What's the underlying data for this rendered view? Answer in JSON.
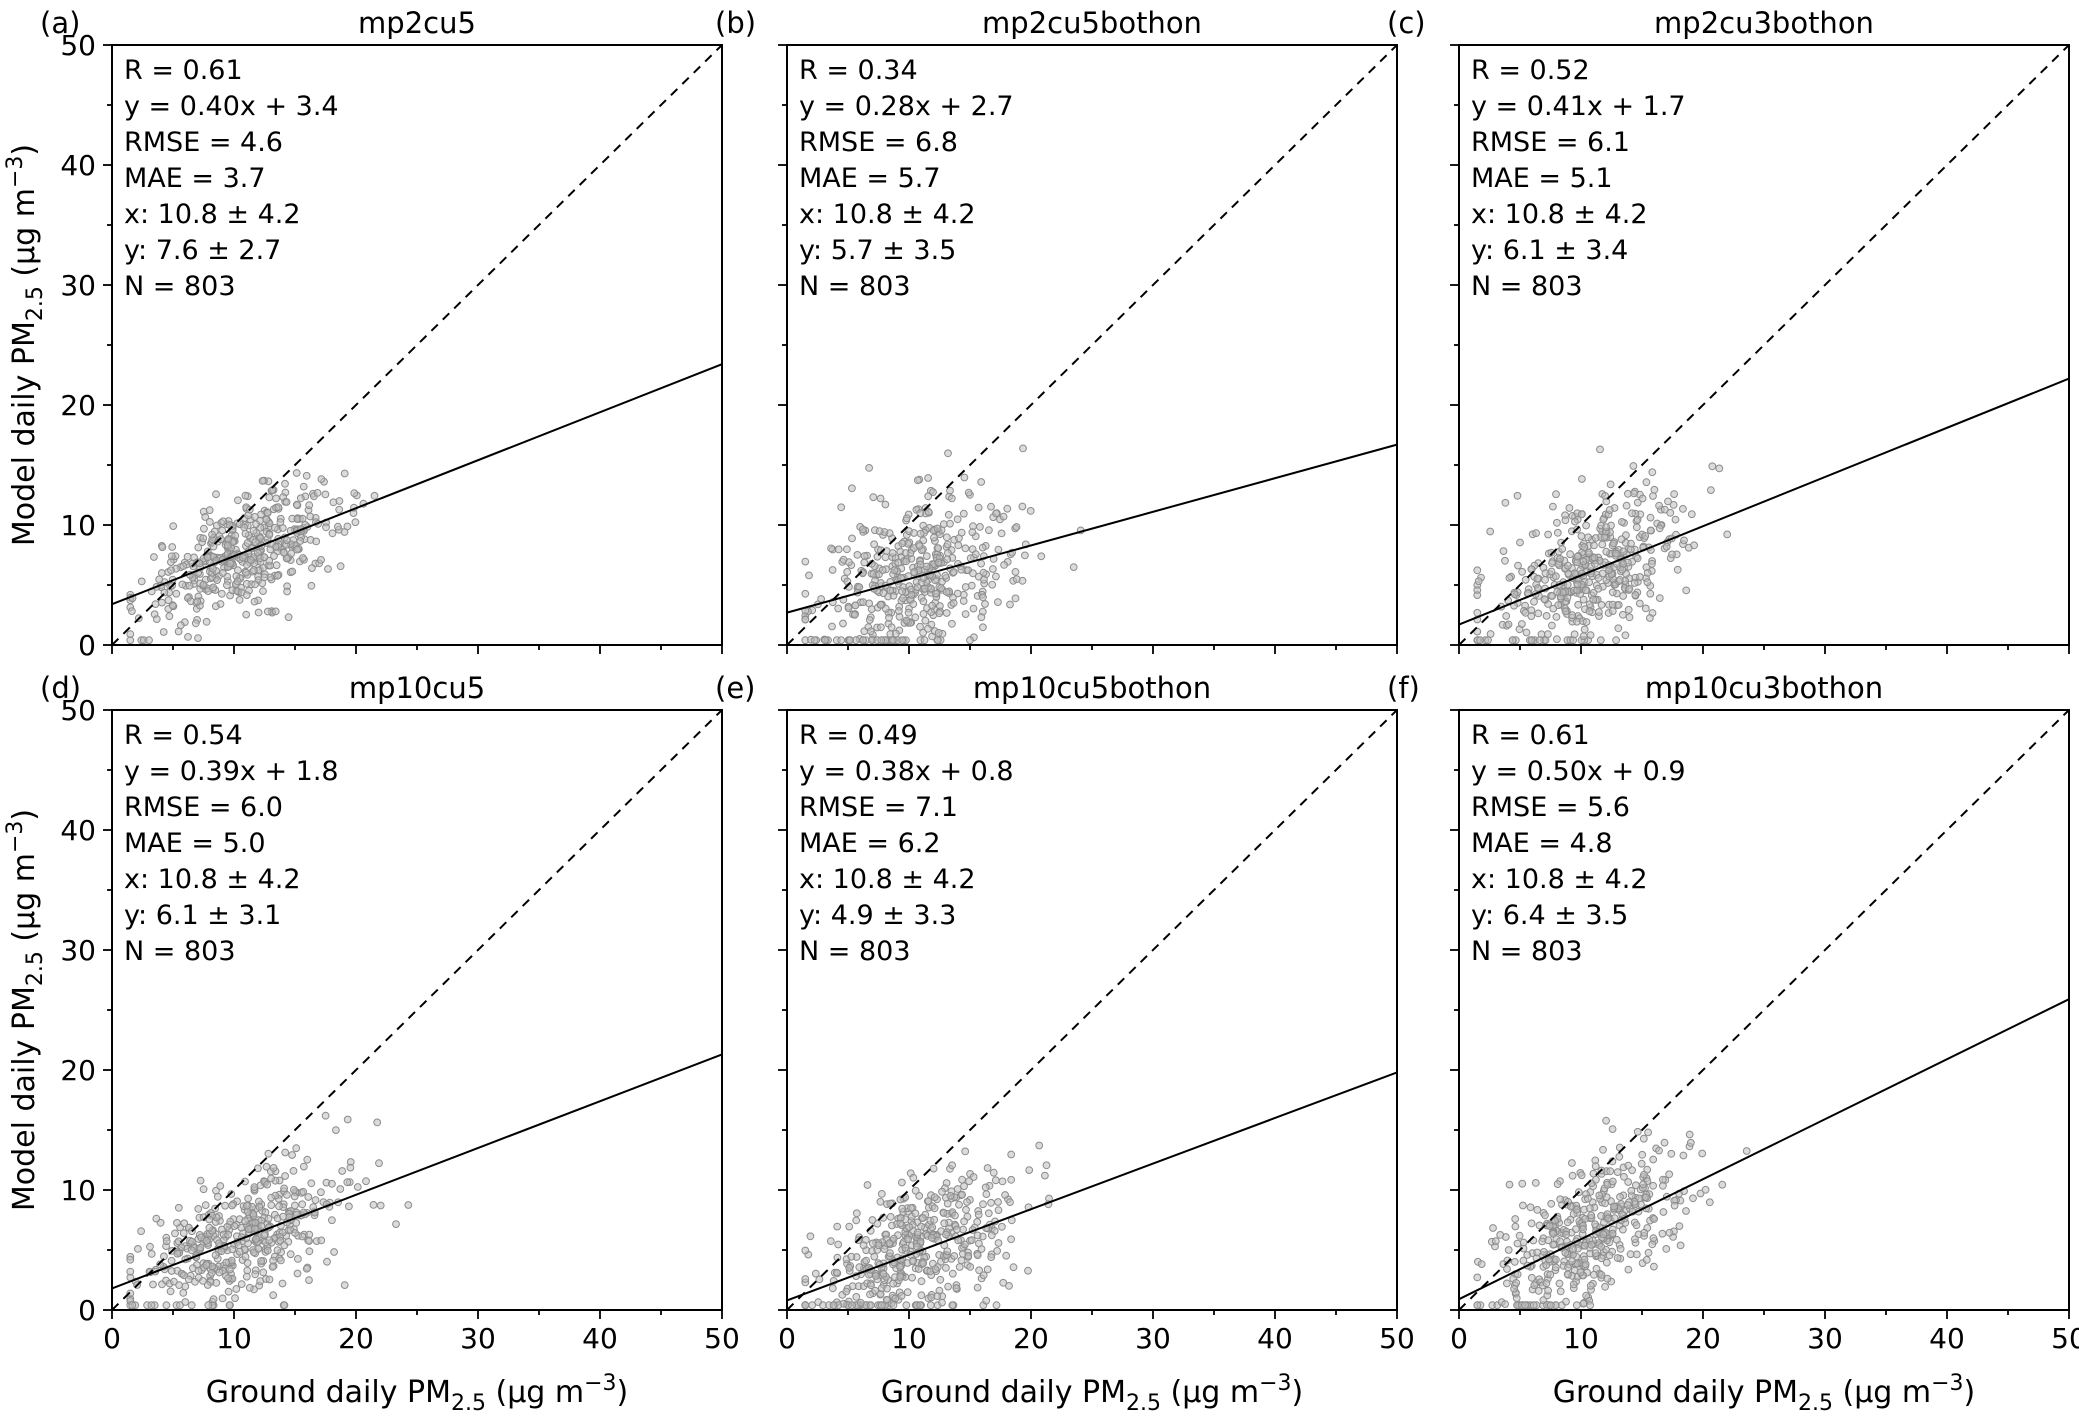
{
  "figure": {
    "xlabel": "Ground daily PM2.5 (µg m−3)",
    "ylabel": "Model daily PM2.5 (µg m−3)",
    "xlabel_parts": {
      "pre": "Ground daily PM",
      "sub": "2.5",
      "mid": " (µg m",
      "sup": "−3",
      "post": ")"
    },
    "ylabel_parts": {
      "pre": "Model daily PM",
      "sub": "2.5",
      "mid": " (µg m",
      "sup": "−3",
      "post": ")"
    },
    "x_ticks": [
      0,
      10,
      20,
      30,
      40,
      50
    ],
    "y_ticks": [
      0,
      10,
      20,
      30,
      40,
      50
    ],
    "minor_tick_step": 5,
    "xlim": [
      0,
      50
    ],
    "ylim": [
      0,
      50
    ],
    "point_fill": "#bdbdbd",
    "point_stroke": "#8c8c8c",
    "line_color": "#000000",
    "background": "#ffffff"
  },
  "chart_data": [
    {
      "type": "scatter",
      "panel_label": "(a)",
      "title": "mp2cu5",
      "xlim": [
        0,
        50
      ],
      "ylim": [
        0,
        50
      ],
      "R": 0.61,
      "slope": 0.4,
      "intercept": 3.4,
      "rmse": 4.6,
      "mae": 3.7,
      "x_mean": 10.8,
      "x_sd": 4.2,
      "y_mean": 7.6,
      "y_sd": 2.7,
      "n": 803,
      "stats_lines": [
        "R = 0.61",
        "y = 0.40x + 3.4",
        "RMSE = 4.6",
        "MAE = 3.7",
        "x: 10.8 ± 4.2",
        "y: 7.6 ± 2.7",
        "N = 803"
      ],
      "identity_line": {
        "style": "dashed",
        "from": [
          0,
          0
        ],
        "to": [
          50,
          50
        ]
      },
      "fit_line": {
        "style": "solid",
        "equation": "y = 0.40x + 3.4"
      }
    },
    {
      "type": "scatter",
      "panel_label": "(b)",
      "title": "mp2cu5bothon",
      "xlim": [
        0,
        50
      ],
      "ylim": [
        0,
        50
      ],
      "R": 0.34,
      "slope": 0.28,
      "intercept": 2.7,
      "rmse": 6.8,
      "mae": 5.7,
      "x_mean": 10.8,
      "x_sd": 4.2,
      "y_mean": 5.7,
      "y_sd": 3.5,
      "n": 803,
      "stats_lines": [
        "R = 0.34",
        "y = 0.28x + 2.7",
        "RMSE = 6.8",
        "MAE = 5.7",
        "x: 10.8 ± 4.2",
        "y: 5.7 ± 3.5",
        "N = 803"
      ],
      "identity_line": {
        "style": "dashed",
        "from": [
          0,
          0
        ],
        "to": [
          50,
          50
        ]
      },
      "fit_line": {
        "style": "solid",
        "equation": "y = 0.28x + 2.7"
      }
    },
    {
      "type": "scatter",
      "panel_label": "(c)",
      "title": "mp2cu3bothon",
      "xlim": [
        0,
        50
      ],
      "ylim": [
        0,
        50
      ],
      "R": 0.52,
      "slope": 0.41,
      "intercept": 1.7,
      "rmse": 6.1,
      "mae": 5.1,
      "x_mean": 10.8,
      "x_sd": 4.2,
      "y_mean": 6.1,
      "y_sd": 3.4,
      "n": 803,
      "stats_lines": [
        "R = 0.52",
        "y = 0.41x + 1.7",
        "RMSE = 6.1",
        "MAE = 5.1",
        "x: 10.8 ± 4.2",
        "y: 6.1 ± 3.4",
        "N = 803"
      ],
      "identity_line": {
        "style": "dashed",
        "from": [
          0,
          0
        ],
        "to": [
          50,
          50
        ]
      },
      "fit_line": {
        "style": "solid",
        "equation": "y = 0.41x + 1.7"
      }
    },
    {
      "type": "scatter",
      "panel_label": "(d)",
      "title": "mp10cu5",
      "xlim": [
        0,
        50
      ],
      "ylim": [
        0,
        50
      ],
      "R": 0.54,
      "slope": 0.39,
      "intercept": 1.8,
      "rmse": 6.0,
      "mae": 5.0,
      "x_mean": 10.8,
      "x_sd": 4.2,
      "y_mean": 6.1,
      "y_sd": 3.1,
      "n": 803,
      "stats_lines": [
        "R = 0.54",
        "y = 0.39x + 1.8",
        "RMSE = 6.0",
        "MAE = 5.0",
        "x: 10.8 ± 4.2",
        "y: 6.1 ± 3.1",
        "N = 803"
      ],
      "identity_line": {
        "style": "dashed",
        "from": [
          0,
          0
        ],
        "to": [
          50,
          50
        ]
      },
      "fit_line": {
        "style": "solid",
        "equation": "y = 0.39x + 1.8"
      }
    },
    {
      "type": "scatter",
      "panel_label": "(e)",
      "title": "mp10cu5bothon",
      "xlim": [
        0,
        50
      ],
      "ylim": [
        0,
        50
      ],
      "R": 0.49,
      "slope": 0.38,
      "intercept": 0.8,
      "rmse": 7.1,
      "mae": 6.2,
      "x_mean": 10.8,
      "x_sd": 4.2,
      "y_mean": 4.9,
      "y_sd": 3.3,
      "n": 803,
      "stats_lines": [
        "R = 0.49",
        "y = 0.38x + 0.8",
        "RMSE = 7.1",
        "MAE = 6.2",
        "x: 10.8 ± 4.2",
        "y: 4.9 ± 3.3",
        "N = 803"
      ],
      "identity_line": {
        "style": "dashed",
        "from": [
          0,
          0
        ],
        "to": [
          50,
          50
        ]
      },
      "fit_line": {
        "style": "solid",
        "equation": "y = 0.38x + 0.8"
      }
    },
    {
      "type": "scatter",
      "panel_label": "(f)",
      "title": "mp10cu3bothon",
      "xlim": [
        0,
        50
      ],
      "ylim": [
        0,
        50
      ],
      "R": 0.61,
      "slope": 0.5,
      "intercept": 0.9,
      "rmse": 5.6,
      "mae": 4.8,
      "x_mean": 10.8,
      "x_sd": 4.2,
      "y_mean": 6.4,
      "y_sd": 3.5,
      "n": 803,
      "stats_lines": [
        "R = 0.61",
        "y = 0.50x + 0.9",
        "RMSE = 5.6",
        "MAE = 4.8",
        "x: 10.8 ± 4.2",
        "y: 6.4 ± 3.5",
        "N = 803"
      ],
      "identity_line": {
        "style": "dashed",
        "from": [
          0,
          0
        ],
        "to": [
          50,
          50
        ]
      },
      "fit_line": {
        "style": "solid",
        "equation": "y = 0.50x + 0.9"
      }
    }
  ]
}
